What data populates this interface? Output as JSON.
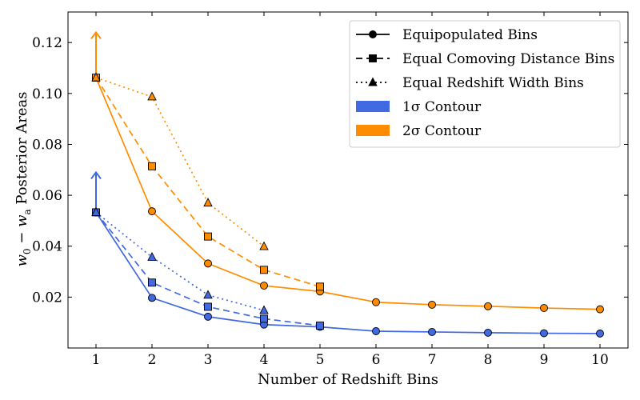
{
  "chart_data": {
    "type": "line",
    "xlabel": "Number of Redshift Bins",
    "ylabel": "w0 − wa Posterior Areas",
    "xlim": [
      0.5,
      10.5
    ],
    "ylim": [
      0.0,
      0.132
    ],
    "xticks": [
      "1",
      "2",
      "3",
      "4",
      "5",
      "6",
      "7",
      "8",
      "9",
      "10"
    ],
    "yticks": [
      "0.02",
      "0.04",
      "0.06",
      "0.08",
      "0.10",
      "0.12"
    ],
    "colors": {
      "sigma1": "#4169e1",
      "sigma2": "#ff8c00",
      "edge": "#000000"
    },
    "series": [
      {
        "name": "Equipopulated Bins",
        "contour": "1σ",
        "style": "solid",
        "marker": "circle",
        "x": [
          1,
          2,
          3,
          4,
          5,
          6,
          7,
          8,
          9,
          10
        ],
        "values": [
          0.0533,
          0.0197,
          0.0123,
          0.0092,
          0.0083,
          0.0066,
          0.0063,
          0.006,
          0.0058,
          0.0057
        ]
      },
      {
        "name": "Equal Comoving Distance Bins",
        "contour": "1σ",
        "style": "dashed",
        "marker": "square",
        "x": [
          1,
          2,
          3,
          4,
          5
        ],
        "values": [
          0.0533,
          0.0257,
          0.0162,
          0.0115,
          0.0088
        ]
      },
      {
        "name": "Equal Redshift Width Bins",
        "contour": "1σ",
        "style": "dotted",
        "marker": "triangle",
        "x": [
          1,
          2,
          3,
          4
        ],
        "values": [
          0.0533,
          0.0357,
          0.0208,
          0.0148
        ]
      },
      {
        "name": "Equipopulated Bins",
        "contour": "2σ",
        "style": "solid",
        "marker": "circle",
        "x": [
          1,
          2,
          3,
          4,
          5,
          6,
          7,
          8,
          9,
          10
        ],
        "values": [
          0.1062,
          0.0537,
          0.0332,
          0.0245,
          0.0222,
          0.018,
          0.017,
          0.0164,
          0.0157,
          0.0152
        ]
      },
      {
        "name": "Equal Comoving Distance Bins",
        "contour": "2σ",
        "style": "dashed",
        "marker": "square",
        "x": [
          1,
          2,
          3,
          4,
          5
        ],
        "values": [
          0.1062,
          0.0714,
          0.0438,
          0.0307,
          0.0241
        ]
      },
      {
        "name": "Equal Redshift Width Bins",
        "contour": "2σ",
        "style": "dotted",
        "marker": "triangle",
        "x": [
          1,
          2,
          3,
          4
        ],
        "values": [
          0.1062,
          0.0987,
          0.057,
          0.0399
        ]
      }
    ],
    "arrows": [
      {
        "contour": "1σ",
        "x": 1,
        "from": 0.0533,
        "to": 0.069
      },
      {
        "contour": "2σ",
        "x": 1,
        "from": 0.1062,
        "to": 0.124
      }
    ],
    "legend": {
      "placement": "top-right",
      "entries": [
        {
          "label": "Equipopulated Bins",
          "kind": "line",
          "style": "solid",
          "marker": "circle"
        },
        {
          "label": "Equal Comoving Distance Bins",
          "kind": "line",
          "style": "dashed",
          "marker": "square"
        },
        {
          "label": "Equal Redshift Width Bins",
          "kind": "line",
          "style": "dotted",
          "marker": "triangle"
        },
        {
          "label": "1σ Contour",
          "kind": "patch",
          "color": "sigma1"
        },
        {
          "label": "2σ Contour",
          "kind": "patch",
          "color": "sigma2"
        }
      ]
    }
  }
}
